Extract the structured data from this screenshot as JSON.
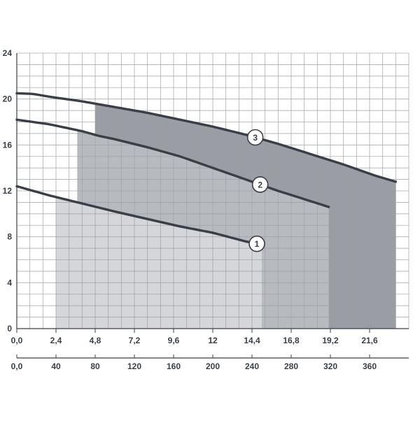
{
  "chart_data": {
    "type": "line",
    "title": "",
    "xlabel": "",
    "ylabel": "",
    "ylim": [
      0,
      24
    ],
    "grid": true,
    "y_ticks": [
      "0",
      "4",
      "8",
      "12",
      "16",
      "20",
      "24"
    ],
    "x_axis_primary": {
      "range": [
        0,
        24
      ],
      "tick_labels": [
        "0,0",
        "2,4",
        "4,8",
        "7,2",
        "9,6",
        "12",
        "14,4",
        "16,8",
        "19,2",
        "21,6"
      ],
      "tick_values": [
        0,
        2.4,
        4.8,
        7.2,
        9.6,
        12,
        14.4,
        16.8,
        19.2,
        21.6
      ]
    },
    "x_axis_secondary": {
      "range": [
        0,
        400
      ],
      "tick_labels": [
        "0,0",
        "40",
        "80",
        "120",
        "160",
        "200",
        "240",
        "280",
        "320",
        "360"
      ],
      "tick_values": [
        0,
        40,
        80,
        120,
        160,
        200,
        240,
        280,
        320,
        360
      ]
    },
    "series": [
      {
        "label": "1",
        "color": "#3a3f47",
        "x": [
          0,
          2,
          4,
          6,
          8,
          10,
          12,
          14,
          15
        ],
        "y": [
          12.4,
          11.6,
          10.9,
          10.2,
          9.55,
          8.9,
          8.35,
          7.6,
          7.3
        ],
        "operating_range": [
          2.4,
          15.0
        ],
        "region_color": "#d4d6d9"
      },
      {
        "label": "2",
        "color": "#3a3f47",
        "x": [
          0,
          2,
          4,
          5,
          6,
          8,
          10,
          12,
          14,
          16,
          18,
          19.1
        ],
        "y": [
          18.2,
          17.8,
          17.2,
          16.8,
          16.5,
          15.8,
          15.0,
          14.0,
          13.0,
          12.0,
          11.1,
          10.6
        ],
        "operating_range": [
          3.7,
          19.1
        ],
        "region_color": "#b7bbc0"
      },
      {
        "label": "3",
        "color": "#3a3f47",
        "x": [
          0,
          1,
          2,
          4,
          6,
          8,
          10,
          12,
          14,
          16,
          18,
          20,
          22,
          23.2
        ],
        "y": [
          20.5,
          20.45,
          20.2,
          19.8,
          19.3,
          18.8,
          18.2,
          17.6,
          16.9,
          16.1,
          15.2,
          14.3,
          13.3,
          12.8
        ],
        "operating_range": [
          4.8,
          23.2
        ],
        "region_color": "#9a9ea4"
      }
    ]
  },
  "style": {
    "background": "#ffffff",
    "grid_color": "#9aa0a6",
    "axis_color": "#3a3f47",
    "text_color": "#3a3f47",
    "marker_fill": "#ffffff"
  }
}
